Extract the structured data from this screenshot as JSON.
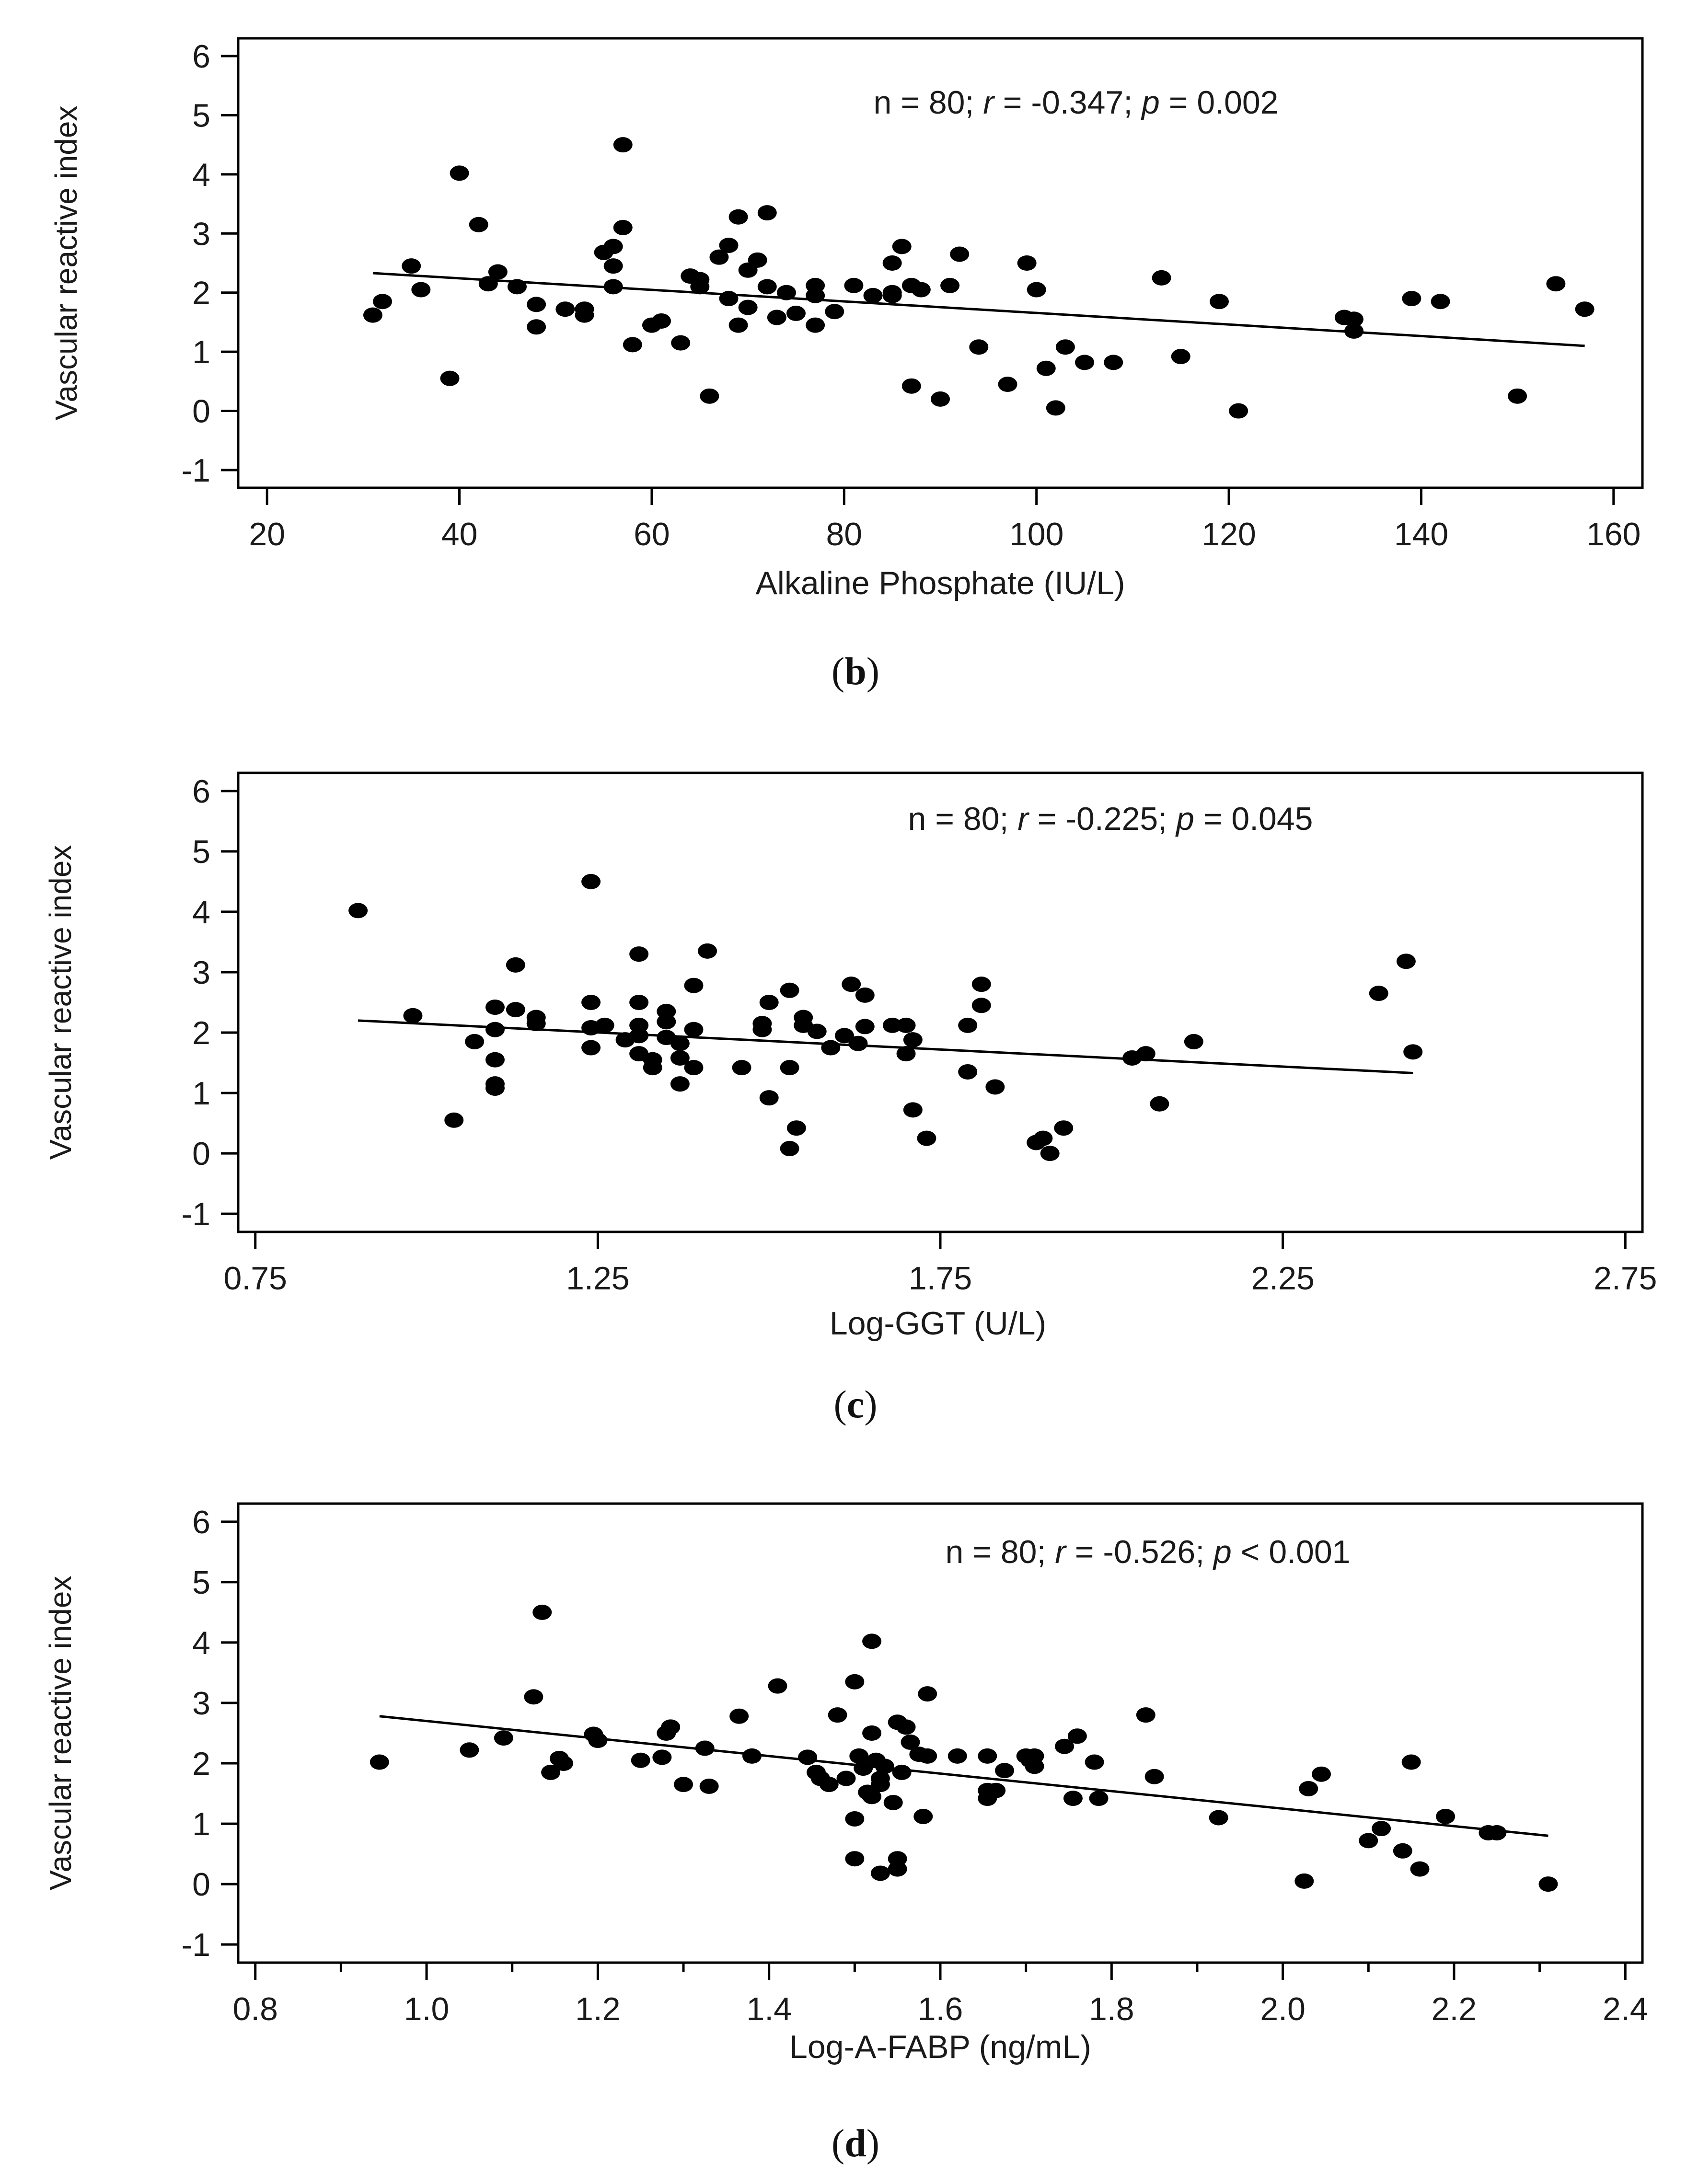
{
  "chart_data": [
    {
      "type": "scatter",
      "panel_label": "b",
      "xlabel": "Alkaline Phosphate (IU/L)",
      "ylabel": "Vascular reactive index",
      "annotation": {
        "prefix": "n = 80; ",
        "r_sym": "r",
        "r_text": " = -0.347; ",
        "p_sym": "p",
        "p_text": " = 0.002"
      },
      "xlim": [
        17,
        163
      ],
      "ylim": [
        -1.3,
        6.3
      ],
      "xticks": [
        20,
        40,
        60,
        80,
        100,
        120,
        140,
        160
      ],
      "xtick_labels": [
        "20",
        "40",
        "60",
        "80",
        "100",
        "120",
        "140",
        "160"
      ],
      "xminor": [],
      "yticks": [
        -1,
        0,
        1,
        2,
        3,
        4,
        5,
        6
      ],
      "ytick_labels": [
        "-1",
        "0",
        "1",
        "2",
        "3",
        "4",
        "5",
        "6"
      ],
      "trendline": {
        "x": [
          31,
          157
        ],
        "y": [
          2.33,
          1.1
        ]
      },
      "points": [
        [
          31,
          1.62
        ],
        [
          32,
          1.85
        ],
        [
          35,
          2.45
        ],
        [
          36,
          2.05
        ],
        [
          39,
          0.55
        ],
        [
          40,
          4.02
        ],
        [
          42,
          3.15
        ],
        [
          43,
          2.15
        ],
        [
          44,
          2.35
        ],
        [
          46,
          2.1
        ],
        [
          48,
          1.8
        ],
        [
          48,
          1.42
        ],
        [
          51,
          1.72
        ],
        [
          53,
          1.72
        ],
        [
          53,
          1.62
        ],
        [
          55,
          2.68
        ],
        [
          56,
          2.78
        ],
        [
          56,
          2.45
        ],
        [
          56,
          2.1
        ],
        [
          57,
          4.5
        ],
        [
          57,
          3.1
        ],
        [
          58,
          1.12
        ],
        [
          60,
          1.45
        ],
        [
          61,
          1.52
        ],
        [
          63,
          1.15
        ],
        [
          64,
          2.28
        ],
        [
          65,
          2.22
        ],
        [
          65,
          2.1
        ],
        [
          66,
          0.25
        ],
        [
          67,
          2.6
        ],
        [
          68,
          2.8
        ],
        [
          68,
          1.9
        ],
        [
          69,
          3.28
        ],
        [
          69,
          1.45
        ],
        [
          70,
          2.38
        ],
        [
          70,
          1.75
        ],
        [
          71,
          2.55
        ],
        [
          72,
          3.35
        ],
        [
          72,
          2.1
        ],
        [
          73,
          1.58
        ],
        [
          74,
          2.0
        ],
        [
          75,
          1.65
        ],
        [
          77,
          2.12
        ],
        [
          77,
          1.95
        ],
        [
          77,
          1.45
        ],
        [
          79,
          1.68
        ],
        [
          81,
          2.12
        ],
        [
          83,
          1.95
        ],
        [
          85,
          2.5
        ],
        [
          85,
          2.0
        ],
        [
          85,
          1.95
        ],
        [
          86,
          2.78
        ],
        [
          87,
          2.12
        ],
        [
          87,
          0.42
        ],
        [
          88,
          2.05
        ],
        [
          90,
          0.2
        ],
        [
          91,
          2.12
        ],
        [
          92,
          2.65
        ],
        [
          94,
          1.08
        ],
        [
          97,
          0.45
        ],
        [
          99,
          2.5
        ],
        [
          100,
          2.05
        ],
        [
          101,
          0.72
        ],
        [
          102,
          0.05
        ],
        [
          103,
          1.08
        ],
        [
          105,
          0.82
        ],
        [
          108,
          0.82
        ],
        [
          113,
          2.25
        ],
        [
          115,
          0.92
        ],
        [
          119,
          1.85
        ],
        [
          121,
          0.0
        ],
        [
          132,
          1.58
        ],
        [
          133,
          1.55
        ],
        [
          133,
          1.35
        ],
        [
          139,
          1.9
        ],
        [
          142,
          1.85
        ],
        [
          150,
          0.25
        ],
        [
          154,
          2.15
        ],
        [
          157,
          1.72
        ]
      ]
    },
    {
      "type": "scatter",
      "panel_label": "c",
      "xlabel": "Log-GGT (U/L)",
      "ylabel": "Vascular reactive index",
      "annotation": {
        "prefix": "n = 80; ",
        "r_sym": "r",
        "r_text": " = -0.225; ",
        "p_sym": "p",
        "p_text": " = 0.045"
      },
      "xlim": [
        0.725,
        2.775
      ],
      "ylim": [
        -1.3,
        6.3
      ],
      "xticks": [
        0.75,
        1.25,
        1.75,
        2.25,
        2.75
      ],
      "xtick_labels": [
        "0.75",
        "1.25",
        "1.75",
        "2.25",
        "2.75"
      ],
      "xminor": [],
      "yticks": [
        -1,
        0,
        1,
        2,
        3,
        4,
        5,
        6
      ],
      "ytick_labels": [
        "-1",
        "0",
        "1",
        "2",
        "3",
        "4",
        "5",
        "6"
      ],
      "trendline": {
        "x": [
          0.9,
          2.44
        ],
        "y": [
          2.2,
          1.33
        ]
      },
      "points": [
        [
          0.9,
          4.02
        ],
        [
          0.98,
          2.28
        ],
        [
          1.04,
          0.55
        ],
        [
          1.07,
          1.85
        ],
        [
          1.1,
          2.42
        ],
        [
          1.1,
          2.05
        ],
        [
          1.1,
          1.55
        ],
        [
          1.1,
          1.15
        ],
        [
          1.1,
          1.08
        ],
        [
          1.13,
          3.12
        ],
        [
          1.13,
          2.38
        ],
        [
          1.16,
          2.25
        ],
        [
          1.16,
          2.15
        ],
        [
          1.24,
          4.5
        ],
        [
          1.24,
          2.5
        ],
        [
          1.24,
          2.08
        ],
        [
          1.24,
          1.75
        ],
        [
          1.26,
          2.12
        ],
        [
          1.29,
          1.88
        ],
        [
          1.31,
          3.3
        ],
        [
          1.31,
          2.5
        ],
        [
          1.31,
          2.12
        ],
        [
          1.31,
          1.95
        ],
        [
          1.31,
          1.65
        ],
        [
          1.33,
          1.55
        ],
        [
          1.33,
          1.42
        ],
        [
          1.35,
          2.35
        ],
        [
          1.35,
          2.18
        ],
        [
          1.35,
          1.92
        ],
        [
          1.37,
          1.82
        ],
        [
          1.37,
          1.58
        ],
        [
          1.37,
          1.15
        ],
        [
          1.39,
          2.78
        ],
        [
          1.39,
          2.05
        ],
        [
          1.39,
          1.42
        ],
        [
          1.41,
          3.35
        ],
        [
          1.46,
          1.42
        ],
        [
          1.49,
          2.15
        ],
        [
          1.49,
          2.05
        ],
        [
          1.5,
          2.5
        ],
        [
          1.5,
          0.92
        ],
        [
          1.53,
          2.7
        ],
        [
          1.53,
          1.42
        ],
        [
          1.53,
          0.08
        ],
        [
          1.54,
          0.42
        ],
        [
          1.55,
          2.25
        ],
        [
          1.55,
          2.12
        ],
        [
          1.57,
          2.02
        ],
        [
          1.59,
          1.75
        ],
        [
          1.61,
          1.95
        ],
        [
          1.62,
          2.8
        ],
        [
          1.63,
          1.82
        ],
        [
          1.64,
          2.62
        ],
        [
          1.64,
          2.1
        ],
        [
          1.68,
          2.12
        ],
        [
          1.7,
          2.12
        ],
        [
          1.7,
          1.65
        ],
        [
          1.71,
          1.88
        ],
        [
          1.71,
          0.72
        ],
        [
          1.73,
          0.25
        ],
        [
          1.79,
          2.12
        ],
        [
          1.79,
          1.35
        ],
        [
          1.81,
          2.8
        ],
        [
          1.81,
          2.45
        ],
        [
          1.83,
          1.1
        ],
        [
          1.89,
          0.18
        ],
        [
          1.9,
          0.25
        ],
        [
          1.91,
          0.0
        ],
        [
          1.93,
          0.42
        ],
        [
          2.03,
          1.58
        ],
        [
          2.05,
          1.65
        ],
        [
          2.07,
          0.82
        ],
        [
          2.12,
          1.85
        ],
        [
          2.39,
          2.65
        ],
        [
          2.43,
          3.18
        ],
        [
          2.44,
          1.68
        ]
      ]
    },
    {
      "type": "scatter",
      "panel_label": "d",
      "xlabel": "Log-A-FABP (ng/mL)",
      "ylabel": "Vascular reactive index",
      "annotation": {
        "prefix": "n = 80; ",
        "r_sym": "r",
        "r_text": " = -0.526; ",
        "p_sym": "p",
        "p_text": " < 0.001"
      },
      "xlim": [
        0.78,
        2.42
      ],
      "ylim": [
        -1.3,
        6.3
      ],
      "xticks": [
        0.8,
        1.0,
        1.2,
        1.4,
        1.6,
        1.8,
        2.0,
        2.2,
        2.4
      ],
      "xtick_labels": [
        "0.8",
        "1.0",
        "1.2",
        "1.4",
        "1.6",
        "1.8",
        "2.0",
        "2.2",
        "2.4"
      ],
      "xminor": [
        0.9,
        1.1,
        1.3,
        1.5,
        1.7,
        1.9,
        2.1,
        2.3
      ],
      "yticks": [
        -1,
        0,
        1,
        2,
        3,
        4,
        5,
        6
      ],
      "ytick_labels": [
        "-1",
        "0",
        "1",
        "2",
        "3",
        "4",
        "5",
        "6"
      ],
      "trendline": {
        "x": [
          0.945,
          2.31
        ],
        "y": [
          2.78,
          0.8
        ]
      },
      "points": [
        [
          0.945,
          2.02
        ],
        [
          1.05,
          2.22
        ],
        [
          1.09,
          2.42
        ],
        [
          1.125,
          3.1
        ],
        [
          1.135,
          4.5
        ],
        [
          1.145,
          1.85
        ],
        [
          1.155,
          2.08
        ],
        [
          1.16,
          2.0
        ],
        [
          1.195,
          2.48
        ],
        [
          1.2,
          2.38
        ],
        [
          1.25,
          2.05
        ],
        [
          1.275,
          2.1
        ],
        [
          1.28,
          2.5
        ],
        [
          1.285,
          2.6
        ],
        [
          1.3,
          1.65
        ],
        [
          1.325,
          2.25
        ],
        [
          1.33,
          1.62
        ],
        [
          1.365,
          2.78
        ],
        [
          1.38,
          2.12
        ],
        [
          1.41,
          3.28
        ],
        [
          1.445,
          2.1
        ],
        [
          1.455,
          1.85
        ],
        [
          1.46,
          1.75
        ],
        [
          1.47,
          1.65
        ],
        [
          1.48,
          2.8
        ],
        [
          1.49,
          1.75
        ],
        [
          1.5,
          3.35
        ],
        [
          1.5,
          1.08
        ],
        [
          1.5,
          0.42
        ],
        [
          1.505,
          2.12
        ],
        [
          1.51,
          1.92
        ],
        [
          1.515,
          1.52
        ],
        [
          1.52,
          4.02
        ],
        [
          1.52,
          2.5
        ],
        [
          1.52,
          1.45
        ],
        [
          1.525,
          2.05
        ],
        [
          1.53,
          1.75
        ],
        [
          1.53,
          1.65
        ],
        [
          1.53,
          0.18
        ],
        [
          1.535,
          1.95
        ],
        [
          1.545,
          1.35
        ],
        [
          1.55,
          2.68
        ],
        [
          1.55,
          0.42
        ],
        [
          1.55,
          0.25
        ],
        [
          1.555,
          1.85
        ],
        [
          1.56,
          2.6
        ],
        [
          1.565,
          2.35
        ],
        [
          1.575,
          2.15
        ],
        [
          1.58,
          1.12
        ],
        [
          1.585,
          2.12
        ],
        [
          1.585,
          3.15
        ],
        [
          1.62,
          2.12
        ],
        [
          1.655,
          2.12
        ],
        [
          1.655,
          1.55
        ],
        [
          1.655,
          1.42
        ],
        [
          1.665,
          1.55
        ],
        [
          1.675,
          1.88
        ],
        [
          1.7,
          2.12
        ],
        [
          1.705,
          2.05
        ],
        [
          1.71,
          1.95
        ],
        [
          1.71,
          2.12
        ],
        [
          1.745,
          2.28
        ],
        [
          1.755,
          1.42
        ],
        [
          1.76,
          2.45
        ],
        [
          1.78,
          2.02
        ],
        [
          1.785,
          1.42
        ],
        [
          1.84,
          2.8
        ],
        [
          1.85,
          1.78
        ],
        [
          1.925,
          1.1
        ],
        [
          2.025,
          0.05
        ],
        [
          2.03,
          1.58
        ],
        [
          2.045,
          1.82
        ],
        [
          2.1,
          0.72
        ],
        [
          2.115,
          0.92
        ],
        [
          2.14,
          0.55
        ],
        [
          2.15,
          2.02
        ],
        [
          2.16,
          0.25
        ],
        [
          2.19,
          1.12
        ],
        [
          2.24,
          0.85
        ],
        [
          2.25,
          0.85
        ],
        [
          2.31,
          0.0
        ]
      ]
    }
  ]
}
